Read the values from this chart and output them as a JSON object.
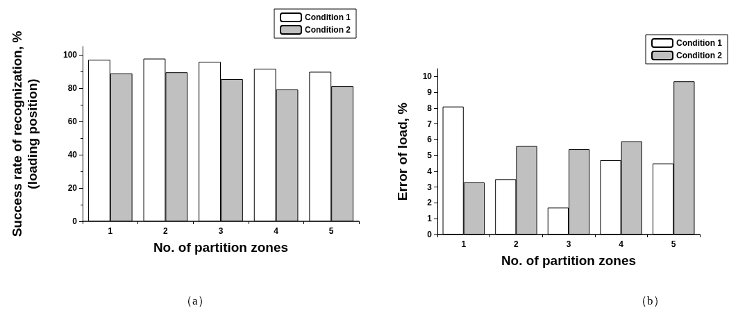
{
  "chart_data": [
    {
      "type": "bar",
      "xlabel": "No. of partition zones",
      "ylabel": "Success rate of recognization, %\n(loading position)",
      "categories": [
        "1",
        "2",
        "3",
        "4",
        "5"
      ],
      "series": [
        {
          "name": "Condition 1",
          "color": "#ffffff",
          "values": [
            97,
            97.7,
            95.8,
            91.6,
            89.8
          ]
        },
        {
          "name": "Condition 2",
          "color": "#c0c0c0",
          "values": [
            88.8,
            89.5,
            85.4,
            79.2,
            81.2
          ]
        }
      ],
      "ylim": [
        0,
        105
      ],
      "yticks": [
        0,
        20,
        40,
        60,
        80,
        100
      ],
      "grid": false,
      "legend": "top right",
      "annotations": [
        "（a）"
      ]
    },
    {
      "type": "bar",
      "xlabel": "No. of partition zones",
      "ylabel": "Error of load, %",
      "categories": [
        "1",
        "2",
        "3",
        "4",
        "5"
      ],
      "series": [
        {
          "name": "Condition 1",
          "color": "#ffffff",
          "values": [
            8.1,
            3.5,
            1.7,
            4.7,
            4.5
          ]
        },
        {
          "name": "Condition 2",
          "color": "#c0c0c0",
          "values": [
            3.3,
            5.6,
            5.4,
            5.9,
            9.7
          ]
        }
      ],
      "ylim": [
        0,
        10.5
      ],
      "yticks": [
        0,
        1,
        2,
        3,
        4,
        5,
        6,
        7,
        8,
        9,
        10
      ],
      "grid": false,
      "legend": "top right",
      "annotations": [
        "（b）"
      ]
    }
  ]
}
